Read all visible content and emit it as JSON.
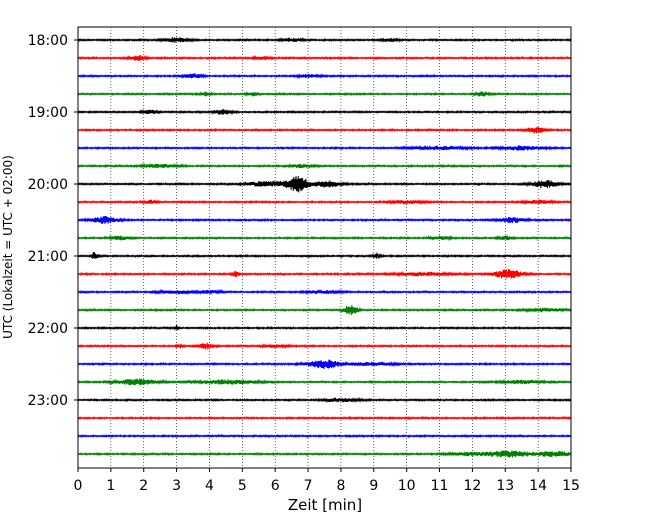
{
  "chart_data": {
    "type": "line",
    "xlabel": "Zeit  [min]",
    "ylabel": "UTC (Lokalzeit = UTC + 02:00)",
    "xlim": [
      0,
      15
    ],
    "x_ticks": [
      0,
      1,
      2,
      3,
      4,
      5,
      6,
      7,
      8,
      9,
      10,
      11,
      12,
      13,
      14,
      15
    ],
    "y_tick_labels": [
      "18:00",
      "19:00",
      "20:00",
      "21:00",
      "22:00",
      "23:00"
    ],
    "row_interval_minutes": 15,
    "start_time": "18:00",
    "trace_count": 24,
    "trace_colors": [
      "#000000",
      "#ff0000",
      "#0000ff",
      "#008000"
    ],
    "vertical_grid": "dotted",
    "traces": [
      {
        "start": "18:00",
        "color": "#000000",
        "events": [
          [
            3.0,
            2.4,
            0.35
          ],
          [
            6.5,
            1.8,
            0.3
          ],
          [
            9.5,
            1.5,
            0.25
          ]
        ]
      },
      {
        "start": "18:15",
        "color": "#ff0000",
        "events": [
          [
            1.8,
            3.0,
            0.2
          ],
          [
            5.6,
            1.6,
            0.2
          ]
        ]
      },
      {
        "start": "18:30",
        "color": "#0000ff",
        "events": [
          [
            3.5,
            2.2,
            0.25
          ],
          [
            7.0,
            1.5,
            0.3
          ]
        ]
      },
      {
        "start": "18:45",
        "color": "#008000",
        "events": [
          [
            3.9,
            2.0,
            0.15
          ],
          [
            5.3,
            1.7,
            0.15
          ],
          [
            12.3,
            2.4,
            0.2
          ]
        ]
      },
      {
        "start": "19:00",
        "color": "#000000",
        "events": [
          [
            2.2,
            1.8,
            0.2
          ],
          [
            4.4,
            2.4,
            0.25
          ]
        ]
      },
      {
        "start": "19:15",
        "color": "#ff0000",
        "events": [
          [
            13.9,
            3.0,
            0.3
          ]
        ]
      },
      {
        "start": "19:30",
        "color": "#0000ff",
        "events": [
          [
            11.0,
            1.5,
            0.8
          ],
          [
            13.5,
            2.0,
            0.6
          ]
        ]
      },
      {
        "start": "19:45",
        "color": "#008000",
        "events": [
          [
            2.5,
            1.6,
            0.5
          ],
          [
            6.8,
            1.6,
            0.3
          ]
        ]
      },
      {
        "start": "20:00",
        "color": "#000000",
        "events": [
          [
            5.8,
            2.8,
            0.6
          ],
          [
            6.7,
            8.0,
            0.3
          ],
          [
            7.6,
            3.0,
            0.4
          ],
          [
            14.2,
            3.6,
            0.4
          ]
        ]
      },
      {
        "start": "20:15",
        "color": "#ff0000",
        "events": [
          [
            2.2,
            1.6,
            0.2
          ],
          [
            10.0,
            1.5,
            0.5
          ],
          [
            14.0,
            1.6,
            0.4
          ]
        ]
      },
      {
        "start": "20:30",
        "color": "#0000ff",
        "events": [
          [
            0.8,
            3.2,
            0.4
          ],
          [
            13.2,
            2.6,
            0.4
          ]
        ]
      },
      {
        "start": "20:45",
        "color": "#008000",
        "events": [
          [
            1.3,
            1.8,
            0.3
          ],
          [
            11.0,
            1.6,
            0.3
          ],
          [
            13.0,
            1.8,
            0.2
          ]
        ]
      },
      {
        "start": "21:00",
        "color": "#000000",
        "events": [
          [
            0.5,
            3.6,
            0.1
          ],
          [
            9.1,
            2.6,
            0.1
          ]
        ]
      },
      {
        "start": "21:15",
        "color": "#ff0000",
        "events": [
          [
            4.8,
            2.4,
            0.1
          ],
          [
            10.5,
            1.6,
            0.8
          ],
          [
            13.1,
            5.0,
            0.4
          ]
        ]
      },
      {
        "start": "21:30",
        "color": "#0000ff",
        "events": [
          [
            3.0,
            1.6,
            0.5
          ],
          [
            4.0,
            1.6,
            0.3
          ],
          [
            7.5,
            1.5,
            0.5
          ]
        ]
      },
      {
        "start": "21:45",
        "color": "#008000",
        "events": [
          [
            8.3,
            5.0,
            0.2
          ],
          [
            14.2,
            1.6,
            0.5
          ]
        ]
      },
      {
        "start": "22:00",
        "color": "#000000",
        "events": [
          [
            3.0,
            2.0,
            0.05
          ]
        ]
      },
      {
        "start": "22:15",
        "color": "#ff0000",
        "events": [
          [
            3.1,
            2.0,
            0.1
          ],
          [
            3.9,
            3.0,
            0.2
          ],
          [
            6.0,
            1.4,
            0.3
          ]
        ]
      },
      {
        "start": "22:30",
        "color": "#0000ff",
        "events": [
          [
            7.5,
            4.2,
            0.5
          ],
          [
            9.0,
            1.5,
            0.6
          ]
        ]
      },
      {
        "start": "22:45",
        "color": "#008000",
        "events": [
          [
            1.8,
            2.8,
            0.6
          ],
          [
            4.5,
            2.0,
            0.8
          ],
          [
            13.5,
            1.5,
            0.6
          ]
        ]
      },
      {
        "start": "23:00",
        "color": "#000000",
        "events": [
          [
            8.0,
            1.8,
            0.5
          ]
        ]
      },
      {
        "start": "23:15",
        "color": "#ff0000",
        "events": []
      },
      {
        "start": "23:30",
        "color": "#0000ff",
        "events": []
      },
      {
        "start": "23:45",
        "color": "#008000",
        "events": [
          [
            12.0,
            1.6,
            0.7
          ],
          [
            13.2,
            3.0,
            0.6
          ],
          [
            14.5,
            2.4,
            0.5
          ]
        ]
      }
    ]
  }
}
